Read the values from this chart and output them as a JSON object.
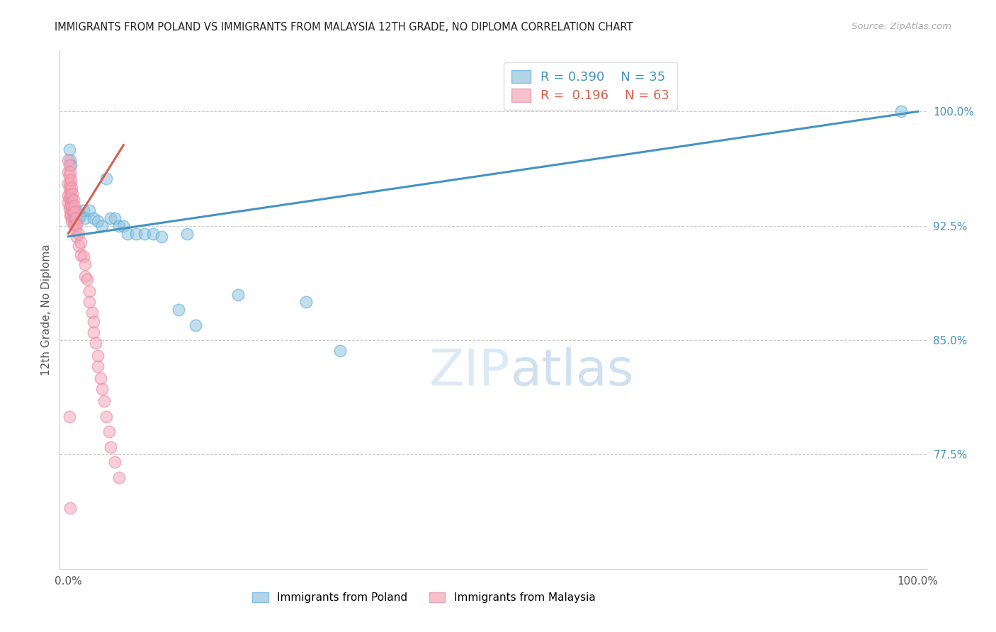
{
  "title": "IMMIGRANTS FROM POLAND VS IMMIGRANTS FROM MALAYSIA 12TH GRADE, NO DIPLOMA CORRELATION CHART",
  "source": "Source: ZipAtlas.com",
  "ylabel": "12th Grade, No Diploma",
  "xlim": [
    -0.01,
    1.01
  ],
  "ylim": [
    0.7,
    1.04
  ],
  "ytick_labels": [
    "77.5%",
    "85.0%",
    "92.5%",
    "100.0%"
  ],
  "ytick_values": [
    0.775,
    0.85,
    0.925,
    1.0
  ],
  "legend_r_poland": "0.390",
  "legend_n_poland": "35",
  "legend_r_malaysia": "0.196",
  "legend_n_malaysia": "63",
  "poland_color": "#92c5de",
  "malaysia_color": "#f4a6b8",
  "poland_line_color": "#4393c3",
  "malaysia_line_color": "#d6604d",
  "poland_marker_edge": "#5aabe0",
  "malaysia_marker_edge": "#e88aa0",
  "watermark_zip": "ZIP",
  "watermark_atlas": "atlas",
  "grid_color": "#cccccc",
  "background_color": "#ffffff",
  "poland_x": [
    0.001,
    0.002,
    0.003,
    0.004,
    0.005,
    0.006,
    0.007,
    0.008,
    0.009,
    0.01,
    0.012,
    0.015,
    0.018,
    0.02,
    0.025,
    0.03,
    0.035,
    0.04,
    0.045,
    0.05,
    0.055,
    0.06,
    0.065,
    0.07,
    0.08,
    0.09,
    0.1,
    0.11,
    0.13,
    0.14,
    0.15,
    0.2,
    0.28,
    0.32,
    0.98
  ],
  "poland_y": [
    0.975,
    0.968,
    0.965,
    0.94,
    0.935,
    0.932,
    0.93,
    0.93,
    0.933,
    0.935,
    0.93,
    0.932,
    0.935,
    0.93,
    0.935,
    0.93,
    0.928,
    0.925,
    0.956,
    0.93,
    0.93,
    0.925,
    0.925,
    0.92,
    0.92,
    0.92,
    0.92,
    0.918,
    0.87,
    0.92,
    0.86,
    0.88,
    0.875,
    0.843,
    1.0
  ],
  "malaysia_x": [
    0.0,
    0.0,
    0.0,
    0.0,
    0.0,
    0.001,
    0.001,
    0.001,
    0.001,
    0.001,
    0.002,
    0.002,
    0.002,
    0.002,
    0.002,
    0.003,
    0.003,
    0.003,
    0.003,
    0.004,
    0.004,
    0.004,
    0.004,
    0.005,
    0.005,
    0.005,
    0.006,
    0.006,
    0.006,
    0.007,
    0.007,
    0.008,
    0.008,
    0.009,
    0.009,
    0.01,
    0.01,
    0.012,
    0.012,
    0.015,
    0.015,
    0.018,
    0.02,
    0.02,
    0.022,
    0.025,
    0.025,
    0.028,
    0.03,
    0.03,
    0.032,
    0.035,
    0.035,
    0.038,
    0.04,
    0.042,
    0.045,
    0.048,
    0.05,
    0.055,
    0.06,
    0.001,
    0.002
  ],
  "malaysia_y": [
    0.968,
    0.96,
    0.953,
    0.945,
    0.94,
    0.965,
    0.958,
    0.95,
    0.943,
    0.936,
    0.96,
    0.953,
    0.946,
    0.938,
    0.932,
    0.955,
    0.948,
    0.94,
    0.933,
    0.95,
    0.943,
    0.936,
    0.928,
    0.946,
    0.938,
    0.93,
    0.942,
    0.934,
    0.926,
    0.938,
    0.93,
    0.934,
    0.926,
    0.93,
    0.922,
    0.926,
    0.918,
    0.92,
    0.912,
    0.914,
    0.906,
    0.905,
    0.9,
    0.892,
    0.89,
    0.882,
    0.875,
    0.868,
    0.862,
    0.855,
    0.848,
    0.84,
    0.833,
    0.825,
    0.818,
    0.81,
    0.8,
    0.79,
    0.78,
    0.77,
    0.76,
    0.8,
    0.74
  ],
  "poland_trendline_x": [
    0.0,
    1.0
  ],
  "poland_trendline_y": [
    0.918,
    1.0
  ],
  "malaysia_trendline_x": [
    0.0,
    0.065
  ],
  "malaysia_trendline_y": [
    0.92,
    0.978
  ]
}
